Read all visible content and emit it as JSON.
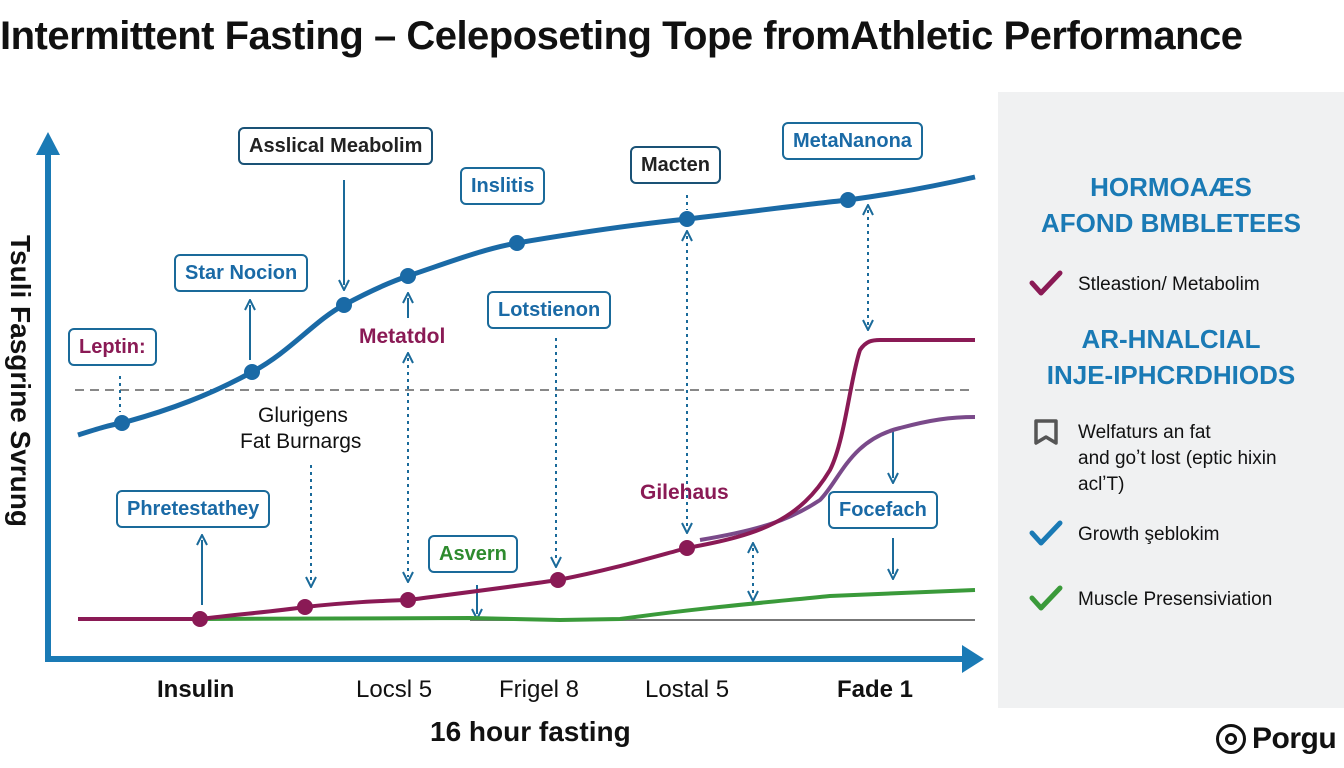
{
  "title": "Intermittent Fasting – Celeposeting Tope fromAthletic Performance",
  "chart": {
    "y_axis_label": "Tsuli Fasgrine Svrung",
    "x_axis_title": "16 hour fasting",
    "x_ticks": [
      "Insulin",
      "Locsl 5",
      "Frigel 8",
      "Lostal 5",
      "Fade 1"
    ],
    "colors": {
      "axis": "#1a7ab5",
      "blue_series": "#1a6aa6",
      "purple_series": "#8a1a55",
      "green_series": "#3a9a3a",
      "violet_series": "#7a4a8a"
    }
  },
  "labels": {
    "asslical": "Asslical Meabolim",
    "inslitis": "Inslitis",
    "macten": "Macten",
    "metananona": "MetaNanona",
    "star_nocion": "Star Nocion",
    "leptin": "Leptin:",
    "metatdol": "Metatdol",
    "lotstienon": "Lotstienon",
    "glurigens": "Glurigens",
    "fat_burnargs": "Fat Burnargs",
    "gilehaus": "Gilehaus",
    "phretestathey": "Phretestathey",
    "asvern": "Asvern",
    "focefach": "Focefach"
  },
  "panel": {
    "heading1": [
      "HORMOAÆS",
      "AFOND BMBLETEES"
    ],
    "heading2": [
      "AR-HNALCIAL",
      "INJE-IPHCRDHIODS"
    ],
    "items": [
      {
        "icon": "check-icon",
        "color": "#8a1a55",
        "text": "Stleastion/ Metabolim"
      },
      {
        "icon": "bookmark-icon",
        "color": "#555555",
        "text": "Welfaturs an fat\nand goʼt lost (eptic hixin\naclʼT)"
      },
      {
        "icon": "check-icon",
        "color": "#1a7ab5",
        "text": "Growth şeblokim"
      },
      {
        "icon": "check-icon",
        "color": "#3a9a3a",
        "text": "Muscle Presensiviation"
      }
    ]
  },
  "logo": {
    "text": "Porgu"
  }
}
